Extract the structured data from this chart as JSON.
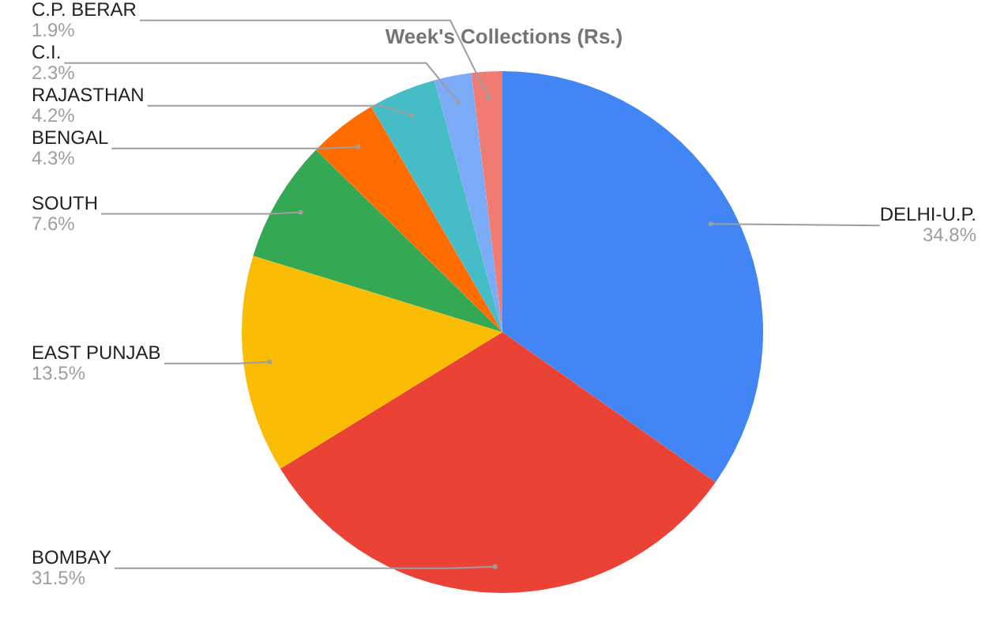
{
  "chart_data": {
    "type": "pie",
    "title": "Week's Collections (Rs.)",
    "categories": [
      "DELHI-U.P.",
      "BOMBAY",
      "EAST PUNJAB",
      "SOUTH",
      "BENGAL",
      "RAJASTHAN",
      "C.I.",
      "C.P. BERAR"
    ],
    "values": [
      34.8,
      31.5,
      13.5,
      7.6,
      4.3,
      4.2,
      2.3,
      1.9
    ],
    "value_labels": [
      "34.8%",
      "31.5%",
      "13.5%",
      "7.6%",
      "4.3%",
      "4.2%",
      "2.3%",
      "1.9%"
    ],
    "colors": [
      "#4285f4",
      "#ea4335",
      "#fbbc04",
      "#34a853",
      "#ff6d01",
      "#46bdc6",
      "#7baaf7",
      "#f07b72"
    ],
    "legend": false
  }
}
